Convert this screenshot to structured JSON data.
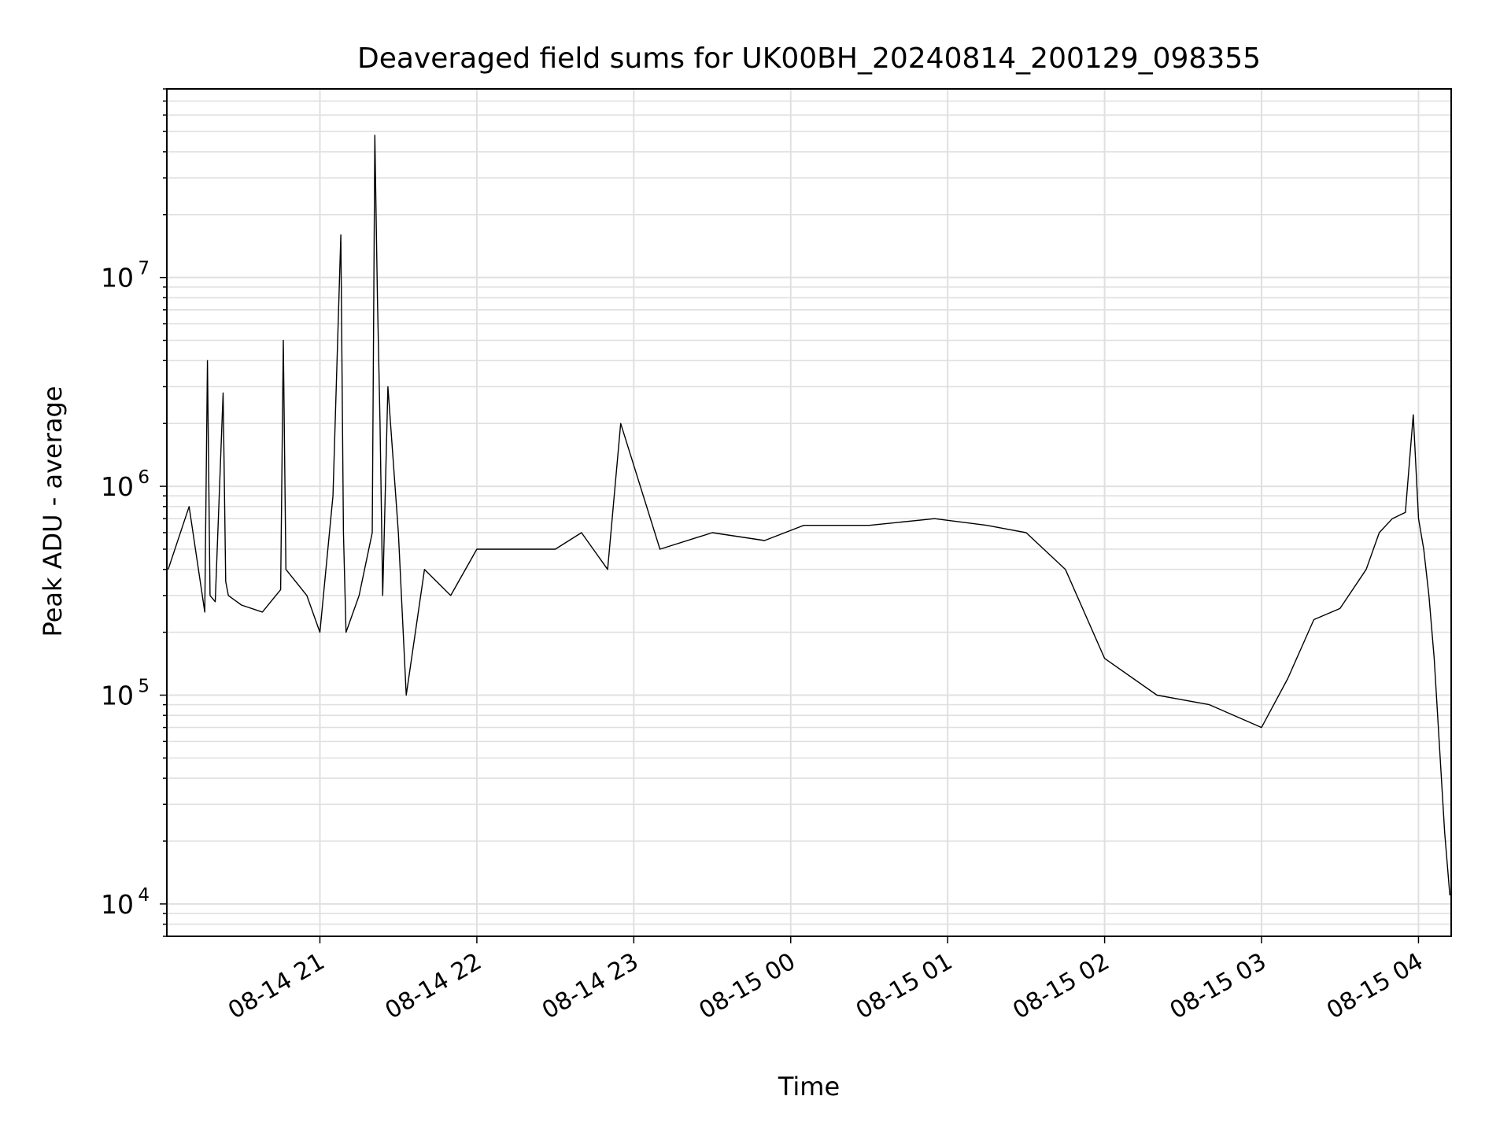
{
  "chart_data": {
    "type": "line",
    "title": "Deaveraged field sums for UK00BH_20240814_200129_098355",
    "xlabel": "Time",
    "ylabel": "Peak ADU - average",
    "x_tick_labels": [
      "08-14 21",
      "08-14 22",
      "08-14 23",
      "08-15 00",
      "08-15 01",
      "08-15 02",
      "08-15 03",
      "08-15 04"
    ],
    "x_ticks": [
      "2024-08-14T21:00",
      "2024-08-14T22:00",
      "2024-08-14T23:00",
      "2024-08-15T00:00",
      "2024-08-15T01:00",
      "2024-08-15T02:00",
      "2024-08-15T03:00",
      "2024-08-15T04:00"
    ],
    "xlim": [
      "2024-08-14T20:01:29",
      "2024-08-15T04:12:30"
    ],
    "y_scale": "log",
    "ylim": [
      7000,
      80000000
    ],
    "y_tick_labels": [
      {
        "base": "10",
        "exp": "4",
        "value": 10000
      },
      {
        "base": "10",
        "exp": "5",
        "value": 100000
      },
      {
        "base": "10",
        "exp": "6",
        "value": 1000000
      },
      {
        "base": "10",
        "exp": "7",
        "value": 10000000
      }
    ],
    "grid": true,
    "line_color": "#000000",
    "grid_color": "#e0e0e0",
    "series": [
      {
        "x": [
          "2024-08-14T20:02",
          "2024-08-14T20:10",
          "2024-08-14T20:16",
          "2024-08-14T20:17",
          "2024-08-14T20:18",
          "2024-08-14T20:20",
          "2024-08-14T20:23",
          "2024-08-14T20:24",
          "2024-08-14T20:25",
          "2024-08-14T20:30",
          "2024-08-14T20:38",
          "2024-08-14T20:45",
          "2024-08-14T20:46",
          "2024-08-14T20:47",
          "2024-08-14T20:55",
          "2024-08-14T21:00",
          "2024-08-14T21:05",
          "2024-08-14T21:08",
          "2024-08-14T21:09",
          "2024-08-14T21:10",
          "2024-08-14T21:15",
          "2024-08-14T21:20",
          "2024-08-14T21:21",
          "2024-08-14T21:22",
          "2024-08-14T21:23",
          "2024-08-14T21:24",
          "2024-08-14T21:26",
          "2024-08-14T21:30",
          "2024-08-14T21:33",
          "2024-08-14T21:40",
          "2024-08-14T21:50",
          "2024-08-14T22:00",
          "2024-08-14T22:15",
          "2024-08-14T22:30",
          "2024-08-14T22:40",
          "2024-08-14T22:50",
          "2024-08-14T22:55",
          "2024-08-14T23:10",
          "2024-08-14T23:30",
          "2024-08-14T23:50",
          "2024-08-15T00:05",
          "2024-08-15T00:30",
          "2024-08-15T00:55",
          "2024-08-15T01:15",
          "2024-08-15T01:30",
          "2024-08-15T01:45",
          "2024-08-15T02:00",
          "2024-08-15T02:20",
          "2024-08-15T02:40",
          "2024-08-15T03:00",
          "2024-08-15T03:10",
          "2024-08-15T03:20",
          "2024-08-15T03:30",
          "2024-08-15T03:40",
          "2024-08-15T03:45",
          "2024-08-15T03:50",
          "2024-08-15T03:55",
          "2024-08-15T03:58",
          "2024-08-15T04:00",
          "2024-08-15T04:02",
          "2024-08-15T04:04",
          "2024-08-15T04:06",
          "2024-08-15T04:10",
          "2024-08-15T04:12"
        ],
        "y": [
          400000,
          800000,
          250000,
          4000000,
          300000,
          280000,
          2800000,
          350000,
          300000,
          270000,
          250000,
          320000,
          5000000,
          400000,
          300000,
          200000,
          900000,
          16000000,
          600000,
          200000,
          300000,
          600000,
          48000000,
          8000000,
          2000000,
          300000,
          3000000,
          600000,
          100000,
          400000,
          300000,
          500000,
          500000,
          500000,
          600000,
          400000,
          2000000,
          500000,
          600000,
          550000,
          650000,
          650000,
          700000,
          650000,
          600000,
          400000,
          150000,
          100000,
          90000,
          70000,
          120000,
          230000,
          260000,
          400000,
          600000,
          700000,
          750000,
          2200000,
          700000,
          500000,
          300000,
          150000,
          22000,
          11000
        ]
      }
    ]
  }
}
